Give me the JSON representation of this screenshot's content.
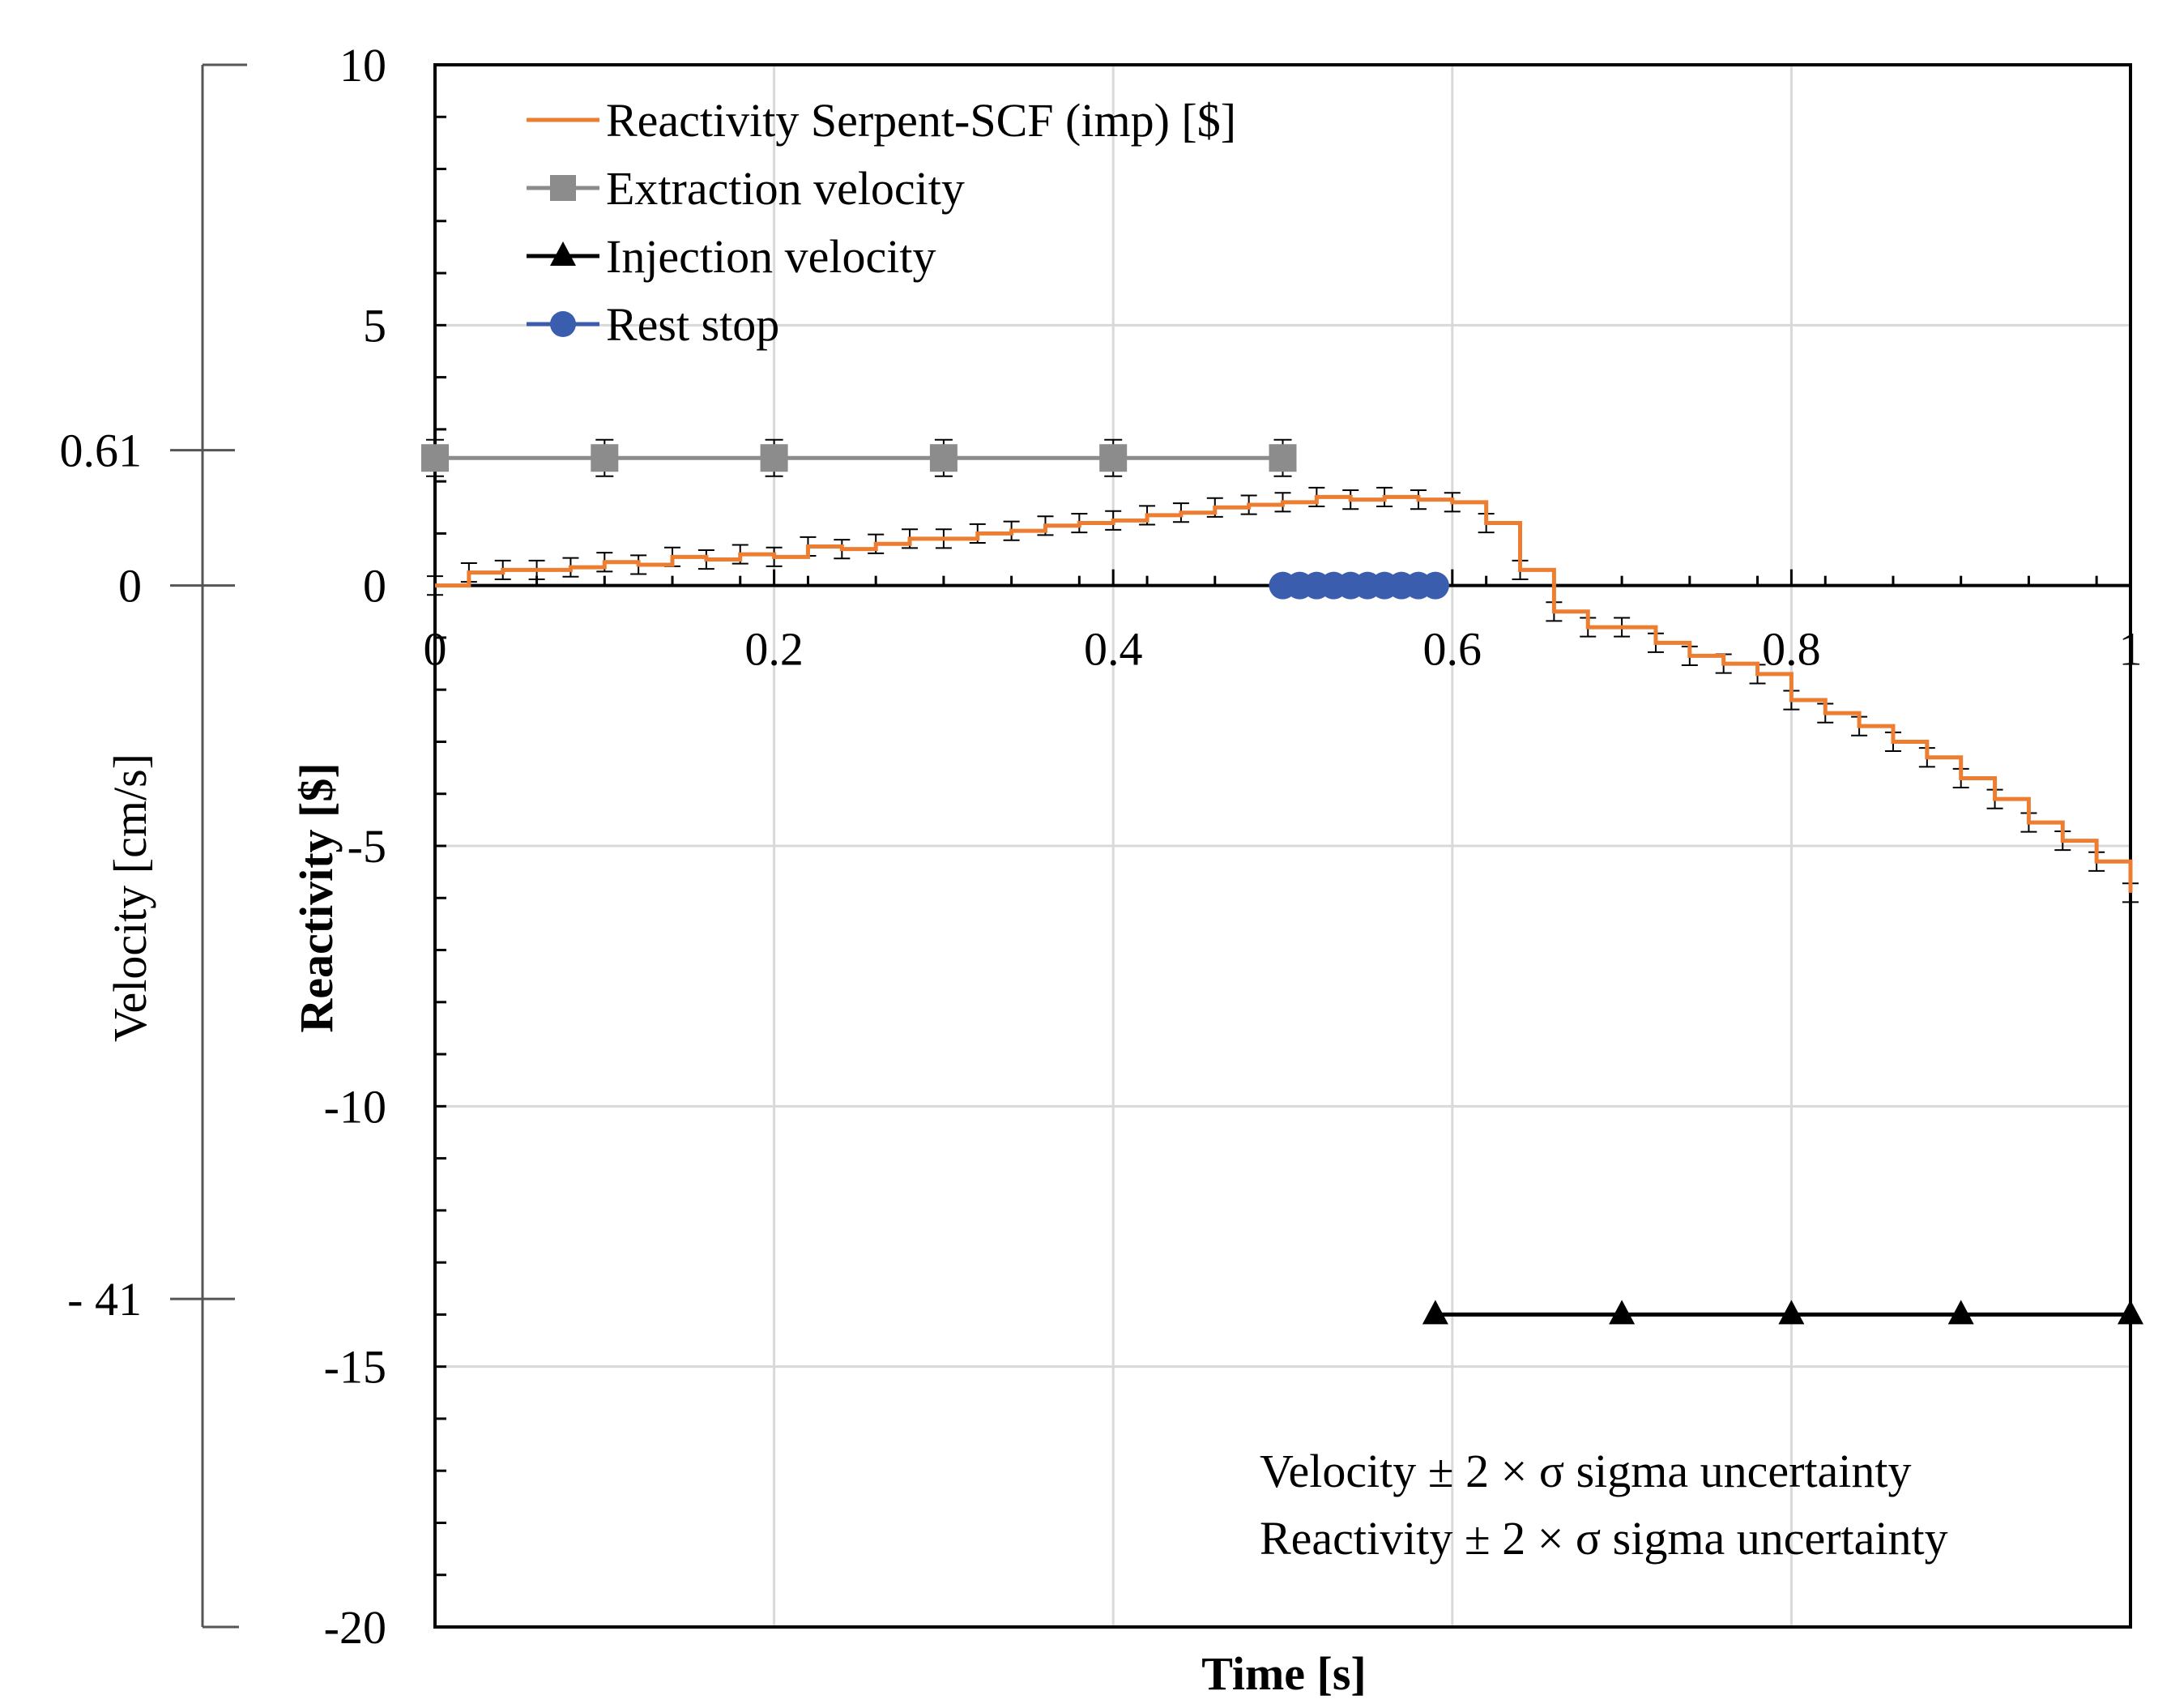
{
  "chart_data": {
    "type": "line",
    "xlabel": "Time [s]",
    "ylabel": "Reactivity [$]",
    "secondary_ylabel": "Velocity [cm/s]",
    "xlim": [
      0,
      1
    ],
    "ylim": [
      -20,
      10
    ],
    "x_ticks": [
      0,
      0.2,
      0.4,
      0.6,
      0.8,
      1
    ],
    "x_tick_labels": [
      "0",
      "0.2",
      "0.4",
      "0.6",
      "0.8",
      "1"
    ],
    "y_ticks": [
      10,
      5,
      0,
      -5,
      -10,
      -15,
      -20
    ],
    "y_tick_labels": [
      "10",
      "5",
      "0",
      "-5",
      "-10",
      "-15",
      "-20"
    ],
    "secondary_axis": {
      "ticks_in_primary_units": [
        2.6,
        0,
        -13.7
      ],
      "tick_labels": [
        "0.61",
        "0",
        "- 41"
      ],
      "range_in_primary_units": [
        -20,
        10
      ]
    },
    "grid": true,
    "series": [
      {
        "name": "Reactivity Serpent-SCF (imp) [$]",
        "color": "#ED7D31",
        "style": "step",
        "error_bars": true,
        "x": [
          0,
          0.02,
          0.04,
          0.06,
          0.08,
          0.1,
          0.12,
          0.14,
          0.16,
          0.18,
          0.2,
          0.22,
          0.24,
          0.26,
          0.28,
          0.3,
          0.32,
          0.34,
          0.36,
          0.38,
          0.4,
          0.42,
          0.44,
          0.46,
          0.48,
          0.5,
          0.52,
          0.54,
          0.56,
          0.58,
          0.6,
          0.62,
          0.64,
          0.66,
          0.68,
          0.7,
          0.72,
          0.74,
          0.76,
          0.78,
          0.8,
          0.82,
          0.84,
          0.86,
          0.88,
          0.9,
          0.92,
          0.94,
          0.96,
          0.98,
          1.0
        ],
        "values": [
          0.0,
          0.25,
          0.3,
          0.3,
          0.35,
          0.45,
          0.4,
          0.55,
          0.5,
          0.6,
          0.55,
          0.75,
          0.7,
          0.8,
          0.9,
          0.9,
          1.0,
          1.05,
          1.15,
          1.2,
          1.25,
          1.35,
          1.4,
          1.5,
          1.55,
          1.6,
          1.7,
          1.65,
          1.7,
          1.65,
          1.6,
          1.2,
          0.3,
          -0.5,
          -0.8,
          -0.8,
          -1.1,
          -1.35,
          -1.5,
          -1.7,
          -2.2,
          -2.45,
          -2.7,
          -3.0,
          -3.3,
          -3.7,
          -4.1,
          -4.55,
          -4.9,
          -5.3,
          -5.9
        ],
        "error": 0.18
      },
      {
        "name": "Extraction velocity",
        "color": "#8C8C8C",
        "marker": "square",
        "error_bars": true,
        "x": [
          0,
          0.1,
          0.2,
          0.3,
          0.4,
          0.5
        ],
        "values": [
          2.45,
          2.45,
          2.45,
          2.45,
          2.45,
          2.45
        ],
        "error": 0.35
      },
      {
        "name": "Injection velocity",
        "color": "#000000",
        "marker": "triangle",
        "x": [
          0.59,
          0.7,
          0.8,
          0.9,
          1.0
        ],
        "values": [
          -14.0,
          -14.0,
          -14.0,
          -14.0,
          -14.0
        ]
      },
      {
        "name": "Rest stop",
        "color": "#3A5DAE",
        "marker": "circle",
        "x": [
          0.5,
          0.51,
          0.52,
          0.53,
          0.54,
          0.55,
          0.56,
          0.57,
          0.58,
          0.59
        ],
        "values": [
          0,
          0,
          0,
          0,
          0,
          0,
          0,
          0,
          0,
          0
        ]
      }
    ],
    "annotations": [
      "Velocity ± 2 × σ sigma uncertainty",
      "Reactivity ± 2 × σ sigma uncertainty"
    ]
  }
}
